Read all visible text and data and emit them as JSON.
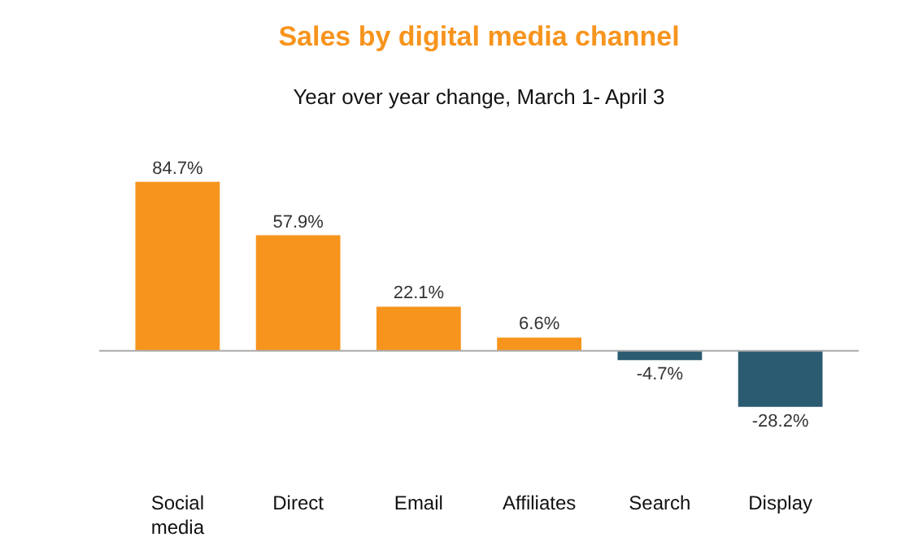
{
  "chart_data": {
    "type": "bar",
    "title": "Sales by digital media channel",
    "subtitle": "Year over year change, March 1- April 3",
    "categories": [
      "Social media",
      "Direct",
      "Email",
      "Affiliates",
      "Search",
      "Display"
    ],
    "values": [
      84.7,
      57.9,
      22.1,
      6.6,
      -4.7,
      -28.2
    ],
    "colors": [
      "#f7941d",
      "#f7941d",
      "#f7941d",
      "#f7941d",
      "#2b5b71",
      "#2b5b71"
    ],
    "value_labels": [
      "84.7%",
      "57.9%",
      "22.1%",
      "6.6%",
      "-4.7%",
      "-28.2%"
    ]
  }
}
